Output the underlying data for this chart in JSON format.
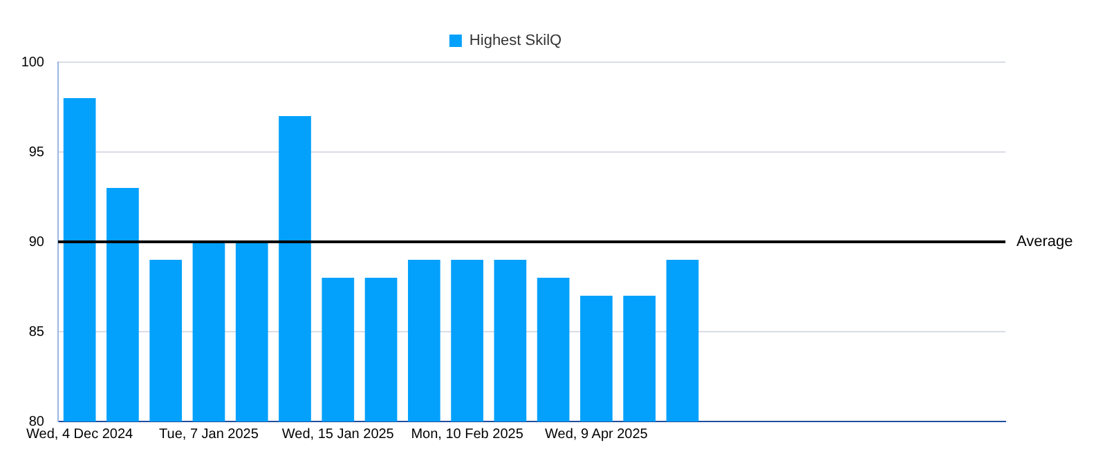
{
  "chart_data": {
    "type": "bar",
    "categories": [
      "Wed, 4 Dec 2024",
      null,
      null,
      "Tue, 7 Jan 2025",
      null,
      null,
      "Wed, 15 Jan 2025",
      null,
      null,
      "Mon, 10 Feb 2025",
      null,
      null,
      "Wed, 9 Apr 2025",
      null,
      null,
      null,
      null,
      null,
      null,
      null,
      null,
      null
    ],
    "series": [
      {
        "name": "Highest SkilQ",
        "color": "#03a1fc",
        "values": [
          98,
          93,
          89,
          90,
          90,
          97,
          88,
          88,
          89,
          89,
          89,
          88,
          87,
          87,
          89,
          null,
          null,
          null,
          null,
          null,
          null,
          null
        ]
      }
    ],
    "ylim": [
      80,
      100
    ],
    "yticks": [
      80,
      85,
      90,
      95,
      100
    ],
    "grid": "y",
    "legend": "top",
    "ref_lines": [
      {
        "axis": "y",
        "value": 90,
        "label": "Average",
        "color": "#000000"
      }
    ]
  }
}
